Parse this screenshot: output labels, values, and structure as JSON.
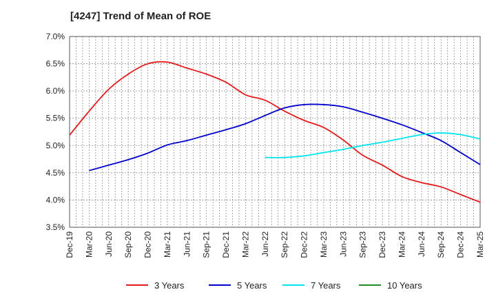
{
  "chart_data": {
    "type": "line",
    "title": "[4247]  Trend of Mean of ROE",
    "xlabel": "",
    "ylabel": "",
    "x": [
      "Dec-19",
      "Mar-20",
      "Jun-20",
      "Sep-20",
      "Dec-20",
      "Mar-21",
      "Jun-21",
      "Sep-21",
      "Dec-21",
      "Mar-22",
      "Jun-22",
      "Sep-22",
      "Dec-22",
      "Mar-23",
      "Jun-23",
      "Sep-23",
      "Dec-23",
      "Mar-24",
      "Jun-24",
      "Sep-24",
      "Dec-24",
      "Mar-25"
    ],
    "y_ticks": [
      "7.0%",
      "6.5%",
      "6.0%",
      "5.5%",
      "5.0%",
      "4.5%",
      "4.0%",
      "3.5%"
    ],
    "ylim": [
      3.5,
      7.0
    ],
    "grid": true,
    "legend_position": "bottom",
    "series": [
      {
        "name": "3 Years",
        "color": "#e41a1c",
        "values": [
          5.19,
          5.63,
          6.03,
          6.31,
          6.5,
          6.53,
          6.42,
          6.31,
          6.16,
          5.93,
          5.83,
          5.63,
          5.46,
          5.33,
          5.1,
          4.82,
          4.64,
          4.43,
          4.32,
          4.24,
          4.1,
          3.96
        ]
      },
      {
        "name": "5 Years",
        "color": "#0000cc",
        "values": [
          null,
          4.54,
          4.64,
          4.74,
          4.86,
          5.01,
          5.09,
          5.19,
          5.29,
          5.4,
          5.55,
          5.69,
          5.75,
          5.75,
          5.71,
          5.61,
          5.5,
          5.38,
          5.24,
          5.09,
          4.87,
          4.65
        ]
      },
      {
        "name": "7 Years",
        "color": "#00e5ee",
        "values": [
          null,
          null,
          null,
          null,
          null,
          null,
          null,
          null,
          null,
          null,
          4.78,
          4.78,
          4.81,
          4.87,
          4.93,
          5.0,
          5.06,
          5.13,
          5.2,
          5.23,
          5.2,
          5.12
        ]
      },
      {
        "name": "10 Years",
        "color": "#228b22",
        "values": [
          null,
          null,
          null,
          null,
          null,
          null,
          null,
          null,
          null,
          null,
          null,
          null,
          null,
          null,
          null,
          null,
          null,
          null,
          null,
          null,
          null,
          null
        ]
      }
    ]
  }
}
